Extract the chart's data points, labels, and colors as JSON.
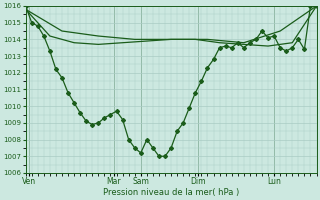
{
  "bg_color": "#cce8e0",
  "grid_color": "#aaccC4",
  "line_color": "#1a5c1a",
  "xlabel": "Pression niveau de la mer( hPa )",
  "ylim": [
    1006,
    1016
  ],
  "yticks": [
    1006,
    1007,
    1008,
    1009,
    1010,
    1011,
    1012,
    1013,
    1014,
    1015,
    1016
  ],
  "day_labels": [
    "Ven",
    "Mar",
    "Sam",
    "Dim",
    "Lun"
  ],
  "day_positions": [
    0.5,
    14.5,
    19.0,
    28.5,
    41.0
  ],
  "xmax": 48,
  "series_main": {
    "x": [
      0,
      1,
      2,
      3,
      4,
      5,
      6,
      7,
      8,
      9,
      10,
      11,
      12,
      13,
      14,
      15,
      16,
      17,
      18,
      19,
      20,
      21,
      22,
      23,
      24,
      25,
      26,
      27,
      28,
      29,
      30,
      31,
      32,
      33,
      34,
      35,
      36,
      37,
      38,
      39,
      40,
      41,
      42,
      43,
      44,
      45,
      46,
      47,
      48
    ],
    "y": [
      1016.0,
      1015.0,
      1014.8,
      1014.2,
      1013.3,
      1012.2,
      1011.7,
      1010.8,
      1010.2,
      1009.6,
      1009.1,
      1008.9,
      1009.0,
      1009.3,
      1009.5,
      1009.7,
      1009.2,
      1008.0,
      1007.5,
      1007.2,
      1008.0,
      1007.5,
      1007.0,
      1007.0,
      1007.5,
      1008.5,
      1009.0,
      1009.9,
      1010.8,
      1011.5,
      1012.3,
      1012.8,
      1013.5,
      1013.6,
      1013.5,
      1013.8,
      1013.5,
      1013.8,
      1014.0,
      1014.5,
      1014.1,
      1014.2,
      1013.5,
      1013.3,
      1013.5,
      1014.0,
      1013.4,
      1016.0,
      1016.0
    ]
  },
  "series_smooth": {
    "x": [
      0,
      4,
      8,
      12,
      16,
      20,
      24,
      28,
      32,
      36,
      40,
      44,
      48
    ],
    "y": [
      1015.8,
      1014.2,
      1013.8,
      1013.7,
      1013.8,
      1013.9,
      1014.0,
      1014.0,
      1013.8,
      1013.7,
      1013.6,
      1013.8,
      1016.0
    ]
  },
  "series_upper": {
    "x": [
      0,
      6,
      12,
      18,
      24,
      30,
      36,
      42,
      48
    ],
    "y": [
      1015.8,
      1014.5,
      1014.2,
      1014.0,
      1014.0,
      1014.0,
      1013.8,
      1014.5,
      1016.0
    ]
  }
}
